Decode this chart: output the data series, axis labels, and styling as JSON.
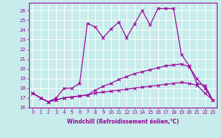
{
  "xlabel": "Windchill (Refroidissement éolien,°C)",
  "background_color": "#c8ecec",
  "grid_color": "#ffffff",
  "line_color": "#990099",
  "xlim": [
    -0.5,
    23.5
  ],
  "ylim": [
    16,
    26.8
  ],
  "xticks": [
    0,
    1,
    2,
    3,
    4,
    5,
    6,
    7,
    8,
    9,
    10,
    11,
    12,
    13,
    14,
    15,
    16,
    17,
    18,
    19,
    20,
    21,
    22,
    23
  ],
  "yticks": [
    16,
    17,
    18,
    19,
    20,
    21,
    22,
    23,
    24,
    25,
    26
  ],
  "series": [
    [
      17.5,
      17.0,
      16.6,
      16.8,
      17.0,
      17.1,
      17.2,
      17.3,
      17.5,
      17.6,
      17.7,
      17.8,
      17.9,
      18.0,
      18.1,
      18.2,
      18.3,
      18.4,
      18.5,
      18.6,
      18.5,
      18.3,
      17.5,
      16.8
    ],
    [
      17.5,
      17.0,
      16.6,
      16.8,
      17.0,
      17.1,
      17.2,
      17.3,
      17.8,
      18.2,
      18.5,
      18.9,
      19.2,
      19.5,
      19.7,
      19.9,
      20.1,
      20.3,
      20.4,
      20.5,
      20.2,
      19.0,
      18.0,
      16.8
    ],
    [
      17.5,
      17.0,
      16.6,
      17.0,
      18.0,
      18.0,
      18.5,
      24.7,
      24.3,
      23.2,
      24.1,
      24.8,
      23.2,
      24.6,
      26.0,
      24.5,
      26.2,
      26.2,
      26.2,
      21.5,
      20.3,
      18.5,
      18.3,
      16.8
    ]
  ],
  "xlabel_fontsize": 5.5,
  "tick_fontsize": 5,
  "linewidth": 0.9,
  "markersize": 2.5,
  "markeredgewidth": 0.8
}
